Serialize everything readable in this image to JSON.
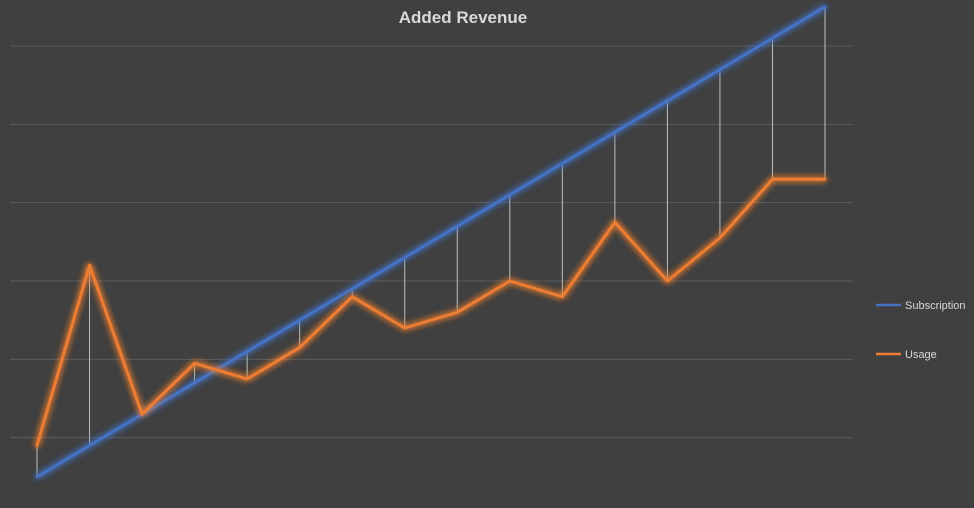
{
  "chart_data": {
    "type": "line",
    "title": "Added Revenue",
    "xlabel": "",
    "ylabel": "",
    "x": [
      1,
      2,
      3,
      4,
      5,
      6,
      7,
      8,
      9,
      10,
      11,
      12,
      13,
      14,
      15,
      16
    ],
    "ylim": [
      0,
      12
    ],
    "y_gridlines": [
      2,
      4,
      6,
      8,
      10
    ],
    "y_tick_labels_shown": false,
    "x_tick_labels_shown": false,
    "drop_lines": true,
    "legend_placement": "right",
    "series": [
      {
        "name": "Subscription",
        "color": "#4472c4",
        "values": [
          1.0,
          1.8,
          2.6,
          3.4,
          4.2,
          5.0,
          5.8,
          6.6,
          7.4,
          8.2,
          9.0,
          9.8,
          10.6,
          11.4,
          12.2,
          13.0
        ]
      },
      {
        "name": "Usage",
        "color": "#ed7d31",
        "values": [
          1.8,
          6.4,
          2.6,
          3.9,
          3.5,
          4.3,
          5.6,
          4.8,
          5.2,
          6.0,
          5.6,
          7.5,
          6.0,
          7.1,
          8.6,
          8.6
        ]
      }
    ]
  }
}
